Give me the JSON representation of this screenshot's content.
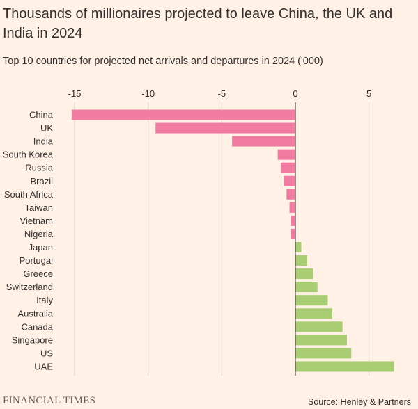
{
  "title": "Thousands of millionaires projected to leave China, the UK and India in 2024",
  "subtitle": "Top 10 countries for projected net arrivals and departures in 2024 ('000)",
  "footer": {
    "logo": "FINANCIAL TIMES",
    "source": "Source: Henley & Partners"
  },
  "colors": {
    "negative": "#f27ba2",
    "positive": "#a8cd72",
    "grid": "#d9cfc6",
    "zero_line": "#33302e"
  },
  "chart_data": {
    "type": "bar",
    "orientation": "horizontal",
    "title": "Thousands of millionaires projected to leave China, the UK and India in 2024",
    "subtitle": "Top 10 countries for projected net arrivals and departures in 2024 ('000)",
    "xlabel": "",
    "ylabel": "",
    "xlim": [
      -15.5,
      7
    ],
    "xticks": [
      -15,
      -10,
      -5,
      0,
      5
    ],
    "xtick_labels": [
      "-15",
      "-10",
      "-5",
      "0",
      "5"
    ],
    "grid": true,
    "categories": [
      "China",
      "UK",
      "India",
      "South Korea",
      "Russia",
      "Brazil",
      "South Africa",
      "Taiwan",
      "Vietnam",
      "Nigeria",
      "Japan",
      "Portugal",
      "Greece",
      "Switzerland",
      "Italy",
      "Australia",
      "Canada",
      "Singapore",
      "US",
      "UAE"
    ],
    "values": [
      -15.2,
      -9.5,
      -4.3,
      -1.2,
      -1.0,
      -0.8,
      -0.6,
      -0.4,
      -0.3,
      -0.3,
      0.4,
      0.8,
      1.2,
      1.5,
      2.2,
      2.5,
      3.2,
      3.5,
      3.8,
      6.7
    ]
  }
}
